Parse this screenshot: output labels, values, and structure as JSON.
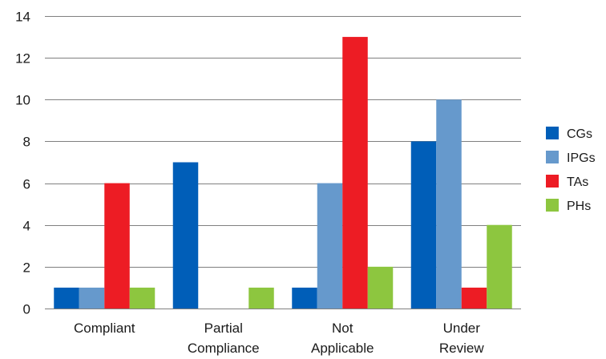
{
  "chart_data": {
    "type": "bar",
    "categories": [
      [
        "Compliant"
      ],
      [
        "Partial",
        "Compliance"
      ],
      [
        "Not",
        "Applicable"
      ],
      [
        "Under",
        "Review"
      ]
    ],
    "series": [
      {
        "name": "CGs",
        "color": "#005EB8",
        "values": [
          1,
          7,
          1,
          8
        ]
      },
      {
        "name": "IPGs",
        "color": "#6699CC",
        "values": [
          1,
          0,
          6,
          10
        ]
      },
      {
        "name": "TAs",
        "color": "#ED1C24",
        "values": [
          6,
          0,
          13,
          1
        ]
      },
      {
        "name": "PHs",
        "color": "#8DC63F",
        "values": [
          1,
          1,
          2,
          4
        ]
      }
    ],
    "ylim": [
      0,
      14
    ],
    "yticks": [
      0,
      2,
      4,
      6,
      8,
      10,
      12,
      14
    ],
    "grid": true,
    "legend_position": "right"
  }
}
